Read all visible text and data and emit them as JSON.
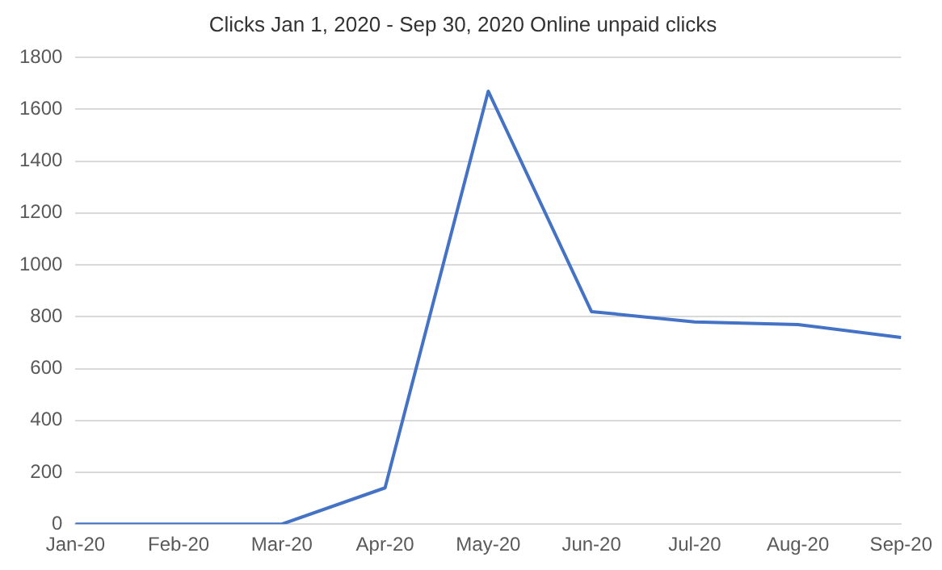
{
  "chart_data": {
    "type": "line",
    "title": "Clicks Jan 1, 2020 - Sep 30, 2020 Online unpaid clicks",
    "categories": [
      "Jan-20",
      "Feb-20",
      "Mar-20",
      "Apr-20",
      "May-20",
      "Jun-20",
      "Jul-20",
      "Aug-20",
      "Sep-20"
    ],
    "series": [
      {
        "color": "#4472c4",
        "values": [
          0,
          0,
          0,
          140,
          1670,
          820,
          780,
          770,
          720
        ]
      }
    ],
    "ylim": [
      0,
      1800
    ],
    "yticks": [
      0,
      200,
      400,
      600,
      800,
      1000,
      1200,
      1400,
      1600,
      1800
    ],
    "grid": "y",
    "legend": false,
    "marker": "none",
    "line_style": "solid"
  }
}
